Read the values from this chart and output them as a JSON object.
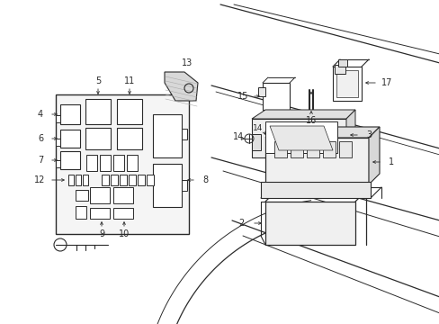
{
  "bg_color": "#ffffff",
  "lc": "#2a2a2a",
  "fig_w": 4.89,
  "fig_h": 3.6,
  "dpi": 100
}
